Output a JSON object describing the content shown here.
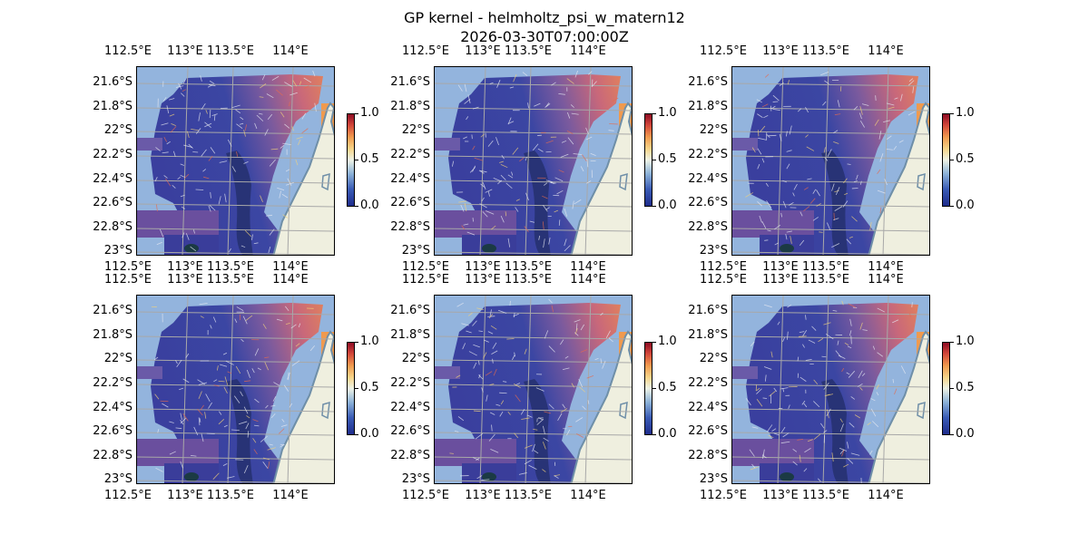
{
  "figure": {
    "title_line1": "GP kernel - helmholtz_psi_w_matern12",
    "title_line2": "2026-03-30T07:00:00Z"
  },
  "axes": {
    "lon_ticks": [
      "112.5°E",
      "113°E",
      "113.5°E",
      "114°E"
    ],
    "lat_ticks": [
      "21.6°S",
      "21.8°S",
      "22°S",
      "22.2°S",
      "22.4°S",
      "22.6°S",
      "22.8°S",
      "23°S"
    ]
  },
  "colorbar": {
    "ticks": [
      "1.0",
      "0.5",
      "0.0"
    ],
    "cmap": "RdYlBu_r-like"
  },
  "colors": {
    "ocean": "#93b4dd",
    "land": "#efefdf",
    "coast": "#6f8fa8",
    "field_low": "#2c3a9b",
    "field_high": "#e0705a"
  },
  "panels": [
    {
      "id": 1,
      "row": 1,
      "col": 1
    },
    {
      "id": 2,
      "row": 1,
      "col": 2
    },
    {
      "id": 3,
      "row": 1,
      "col": 3
    },
    {
      "id": 4,
      "row": 2,
      "col": 1
    },
    {
      "id": 5,
      "row": 2,
      "col": 2
    },
    {
      "id": 6,
      "row": 2,
      "col": 3
    }
  ]
}
